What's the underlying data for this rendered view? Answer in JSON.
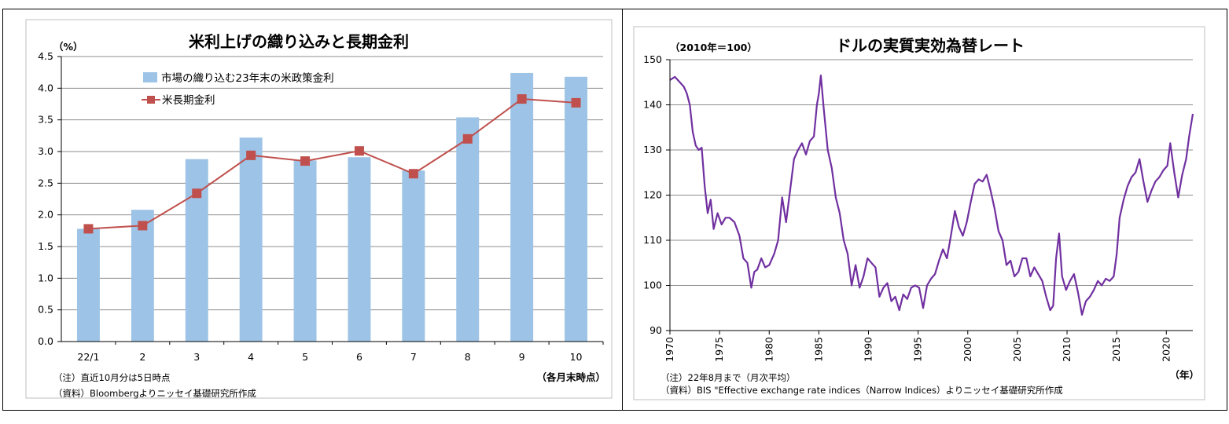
{
  "chart_data": [
    {
      "type": "bar+line",
      "title": "米利上げの織り込みと長期金利",
      "unit_label": "（%）",
      "categories": [
        "22/1",
        "2",
        "3",
        "4",
        "5",
        "6",
        "7",
        "8",
        "9",
        "10"
      ],
      "ylim": [
        0,
        4.5
      ],
      "yticks": [
        "0.0",
        "0.5",
        "1.0",
        "1.5",
        "2.0",
        "2.5",
        "3.0",
        "3.5",
        "4.0",
        "4.5"
      ],
      "grid": true,
      "legend_position": "top-left",
      "series": [
        {
          "name": "市場の織り込む23年末の米政策金利",
          "kind": "bar",
          "color": "#9dc3e6",
          "values": [
            1.78,
            2.08,
            2.88,
            3.22,
            2.86,
            2.91,
            2.7,
            3.54,
            4.24,
            4.18
          ]
        },
        {
          "name": "米長期金利",
          "kind": "line",
          "color": "#c0504d",
          "marker_color": "#c0504d",
          "values": [
            1.78,
            1.83,
            2.34,
            2.94,
            2.85,
            3.01,
            2.65,
            3.2,
            3.83,
            3.77
          ]
        }
      ],
      "x_note": "（各月末時点）",
      "notes": [
        "（注）直近10月分は5日時点",
        "（資料）Bloombergよりニッセイ基礎研究所作成"
      ]
    },
    {
      "type": "line",
      "title": "ドルの実質実効為替レート",
      "unit_label": "（2010年＝100）",
      "xlim": [
        1970,
        2022.67
      ],
      "ylim": [
        90,
        150
      ],
      "yticks": [
        "90",
        "100",
        "110",
        "120",
        "130",
        "140",
        "150"
      ],
      "xticks": [
        "1970",
        "1975",
        "1980",
        "1985",
        "1990",
        "1995",
        "2000",
        "2005",
        "2010",
        "2015",
        "2020"
      ],
      "x_unit": "（年）",
      "grid": true,
      "series": [
        {
          "name": "ドル実質実効為替レート",
          "color": "#7030a0",
          "x": [
            1970.0,
            1970.5,
            1971.0,
            1971.4,
            1971.7,
            1972.0,
            1972.3,
            1972.6,
            1972.9,
            1973.2,
            1973.5,
            1973.8,
            1974.1,
            1974.4,
            1974.8,
            1975.2,
            1975.6,
            1976.0,
            1976.5,
            1977.0,
            1977.4,
            1977.8,
            1978.2,
            1978.5,
            1978.8,
            1979.2,
            1979.6,
            1980.0,
            1980.5,
            1980.9,
            1981.3,
            1981.7,
            1982.1,
            1982.5,
            1982.9,
            1983.3,
            1983.7,
            1984.1,
            1984.5,
            1984.8,
            1985.0,
            1985.2,
            1985.5,
            1985.9,
            1986.3,
            1986.7,
            1987.1,
            1987.5,
            1987.9,
            1988.3,
            1988.7,
            1989.1,
            1989.5,
            1989.9,
            1990.3,
            1990.7,
            1991.1,
            1991.5,
            1991.9,
            1992.3,
            1992.7,
            1993.1,
            1993.5,
            1993.9,
            1994.3,
            1994.7,
            1995.1,
            1995.5,
            1995.9,
            1996.3,
            1996.7,
            1997.1,
            1997.5,
            1997.9,
            1998.3,
            1998.7,
            1999.1,
            1999.5,
            1999.9,
            2000.3,
            2000.7,
            2001.1,
            2001.5,
            2001.9,
            2002.3,
            2002.7,
            2003.1,
            2003.5,
            2003.9,
            2004.3,
            2004.7,
            2005.1,
            2005.5,
            2005.9,
            2006.3,
            2006.7,
            2007.1,
            2007.5,
            2007.9,
            2008.3,
            2008.6,
            2008.9,
            2009.2,
            2009.5,
            2009.9,
            2010.3,
            2010.7,
            2011.1,
            2011.5,
            2011.9,
            2012.3,
            2012.7,
            2013.1,
            2013.5,
            2013.9,
            2014.3,
            2014.7,
            2015.0,
            2015.3,
            2015.7,
            2016.1,
            2016.5,
            2016.9,
            2017.3,
            2017.7,
            2018.1,
            2018.5,
            2018.9,
            2019.3,
            2019.7,
            2020.1,
            2020.4,
            2020.8,
            2021.2,
            2021.6,
            2022.0,
            2022.3,
            2022.67
          ],
          "y": [
            145.5,
            146.2,
            145.0,
            144.0,
            142.5,
            140.0,
            134.0,
            131.0,
            130.0,
            130.5,
            122.0,
            116.0,
            119.0,
            112.5,
            116.0,
            113.5,
            115.0,
            115.0,
            114.0,
            111.0,
            106.0,
            105.0,
            99.5,
            103.0,
            103.5,
            106.0,
            104.0,
            104.5,
            107.0,
            110.0,
            119.5,
            114.0,
            121.0,
            128.0,
            130.0,
            131.5,
            129.0,
            132.0,
            133.0,
            140.0,
            142.5,
            146.5,
            139.0,
            130.0,
            126.0,
            119.5,
            116.0,
            110.0,
            107.0,
            100.0,
            104.5,
            99.5,
            102.0,
            106.0,
            105.0,
            104.0,
            97.5,
            99.5,
            100.5,
            96.5,
            97.5,
            94.5,
            98.0,
            97.0,
            99.5,
            100.0,
            99.5,
            95.0,
            100.0,
            101.5,
            102.5,
            105.5,
            108.0,
            106.0,
            111.0,
            116.5,
            113.0,
            111.0,
            114.0,
            118.5,
            122.5,
            123.5,
            123.0,
            124.5,
            121.0,
            117.0,
            112.0,
            110.0,
            104.5,
            105.5,
            102.0,
            103.0,
            106.0,
            106.0,
            102.0,
            104.0,
            102.5,
            101.0,
            97.5,
            94.5,
            95.5,
            106.0,
            111.5,
            102.0,
            99.0,
            101.0,
            102.5,
            98.5,
            93.5,
            96.5,
            97.5,
            99.0,
            101.0,
            100.0,
            101.5,
            101.0,
            102.0,
            107.0,
            115.0,
            119.0,
            122.0,
            124.0,
            125.0,
            128.0,
            123.0,
            118.5,
            121.0,
            123.0,
            124.0,
            125.5,
            126.5,
            131.5,
            125.0,
            119.5,
            124.5,
            128.0,
            133.0,
            138.0
          ]
        }
      ],
      "notes": [
        "（注）22年8月まで（月次平均）",
        "（資料）BIS \"Effective exchange rate indices（Narrow Indices）よりニッセイ基礎研究所作成"
      ]
    }
  ]
}
